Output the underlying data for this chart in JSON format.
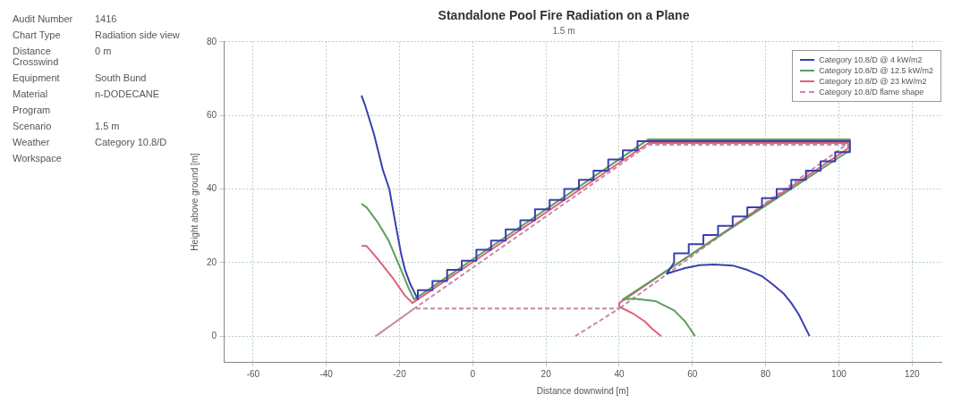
{
  "chart_data": [
    {
      "type": "other",
      "categories": [
        "Audit Number",
        "Chart Type",
        "Distance Crosswind",
        "Equipment",
        "Material",
        "Program",
        "Scenario",
        "Weather",
        "Workspace"
      ],
      "value_labels": [
        "1416",
        "Radiation side view",
        "0 m",
        "South Bund",
        "n-DODECANE",
        null,
        "1.5 m",
        "Category 10.8/D",
        null
      ]
    },
    {
      "type": "line",
      "title": "Standalone Pool Fire Radiation on a Plane",
      "subtitle": "1.5 m",
      "xlabel": "Distance downwind [m]",
      "ylabel": "Height above ground [m]",
      "xlim": [
        -68,
        128
      ],
      "xticks": [
        -60,
        -40,
        -20,
        0,
        20,
        40,
        60,
        80,
        100,
        120
      ],
      "ylim": [
        -7,
        80
      ],
      "yticks": [
        0,
        20,
        40,
        60,
        80
      ],
      "grid": true,
      "legend": "top right",
      "marker": "none",
      "series": [
        {
          "name": "Category 10.8/D @ 4 kW/m2",
          "color": "#3a3fae",
          "line_style": "solid",
          "x": [
            -30.4,
            -29.5,
            -27,
            -24.5,
            -22.8,
            -21,
            -19.5,
            -18.5,
            -17,
            -15.5,
            -15,
            -15,
            -11,
            -11,
            -7,
            -7,
            -3,
            -3,
            1,
            1,
            5,
            5,
            9,
            9,
            13,
            13,
            17,
            17,
            21,
            21,
            25,
            25,
            29,
            29,
            33,
            33,
            37,
            37,
            41,
            41,
            45,
            45,
            48,
            103,
            103,
            99,
            99,
            95,
            95,
            91,
            91,
            87,
            87,
            83,
            83,
            79,
            79,
            75,
            75,
            71,
            71,
            67,
            67,
            63,
            63,
            59,
            59,
            55,
            55,
            53,
            58,
            62,
            66,
            71,
            75,
            79,
            82,
            85,
            87,
            89,
            90.5,
            92
          ],
          "values": [
            65.4,
            63,
            55,
            45,
            40,
            30,
            22,
            18,
            14,
            11,
            10,
            12.5,
            12.5,
            15,
            15,
            18,
            18,
            20.5,
            20.5,
            23.5,
            23.5,
            26,
            26,
            29,
            29,
            31.5,
            31.5,
            34.5,
            34.5,
            37,
            37,
            40,
            40,
            42.5,
            42.5,
            45,
            45,
            48,
            48,
            50.5,
            50.5,
            53,
            53,
            53,
            50,
            50,
            47.5,
            47.5,
            45,
            45,
            42.5,
            42.5,
            40,
            40,
            37.5,
            37.5,
            35,
            35,
            32.5,
            32.5,
            30,
            30,
            27.5,
            27.5,
            25,
            25,
            22.5,
            22.5,
            20,
            17,
            18.5,
            19.3,
            19.5,
            19.2,
            18,
            16.3,
            14,
            11.5,
            9,
            6,
            3,
            0
          ]
        },
        {
          "name": "Category 10.8/D @ 12.5 kW/m2",
          "color": "#5c9e5c",
          "line_style": "solid",
          "x": [
            -30.4,
            -29,
            -26,
            -23,
            -20,
            -17.5,
            -16,
            48,
            103,
            103,
            41,
            44,
            50,
            55,
            58,
            60.7
          ],
          "values": [
            36,
            35,
            31,
            26,
            19,
            13,
            10,
            53.5,
            53.5,
            50.5,
            10,
            10.2,
            9.5,
            7,
            4,
            0
          ]
        },
        {
          "name": "Category 10.8/D @ 23 kW/m2",
          "color": "#e0607a",
          "line_style": "solid",
          "x": [
            -30.4,
            -29,
            -26,
            -22,
            -18.5,
            -16.5,
            48,
            102.5,
            102.5,
            40,
            40,
            44,
            47,
            49,
            51.5
          ],
          "values": [
            24.5,
            24.5,
            21,
            16,
            11,
            9,
            52.5,
            52.5,
            51,
            9,
            8,
            6,
            4,
            2,
            0
          ]
        },
        {
          "name": "Category 10.8/D flame shape",
          "color": "#c48aa8",
          "line_style": "dashed",
          "x": [
            28,
            40,
            -16,
            -26.5,
            -16,
            48,
            102,
            40
          ],
          "values": [
            0,
            7.5,
            7.5,
            0,
            7.5,
            52,
            52,
            7.5
          ]
        }
      ]
    }
  ]
}
